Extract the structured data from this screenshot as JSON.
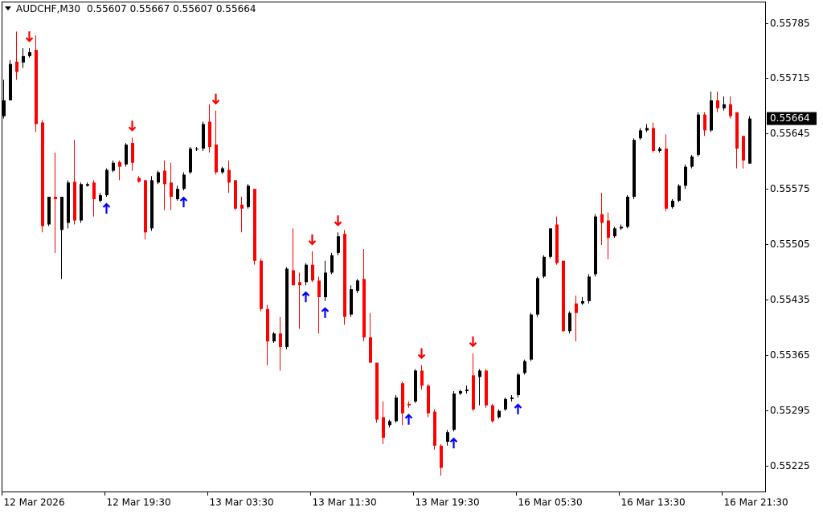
{
  "chart_data": {
    "type": "candlestick",
    "title": "AUDCHF,M30",
    "header_ohlc": [
      0.55607,
      0.55667,
      0.55607,
      0.55664
    ],
    "last_price": 0.55664,
    "categories": [
      "12 Mar 2026",
      null,
      null,
      null,
      null,
      null,
      null,
      null,
      null,
      null,
      null,
      null,
      null,
      null,
      null,
      null,
      "12 Mar 19:30",
      null,
      null,
      null,
      null,
      null,
      null,
      null,
      null,
      null,
      null,
      null,
      null,
      null,
      null,
      null,
      "13 Mar 03:30",
      null,
      null,
      null,
      null,
      null,
      null,
      null,
      null,
      null,
      null,
      null,
      null,
      null,
      null,
      null,
      "13 Mar 11:30",
      null,
      null,
      null,
      null,
      null,
      null,
      null,
      null,
      null,
      null,
      null,
      null,
      null,
      null,
      null,
      "13 Mar 19:30",
      null,
      null,
      null,
      null,
      null,
      null,
      null,
      null,
      null,
      null,
      null,
      null,
      null,
      null,
      null,
      "16 Mar 05:30",
      null,
      null,
      null,
      null,
      null,
      null,
      null,
      null,
      null,
      null,
      null,
      null,
      null,
      null,
      null,
      "16 Mar 13:30",
      null,
      null,
      null,
      null,
      null,
      null,
      null,
      null,
      null,
      null,
      null,
      null,
      null,
      null,
      null,
      "16 Mar 21:30",
      null,
      null,
      null,
      null
    ],
    "open": [
      0.55667,
      0.55687,
      0.55736,
      0.55735,
      0.55743,
      0.55751,
      0.55659,
      0.5553,
      0.55565,
      0.55523,
      0.55532,
      0.55584,
      0.55535,
      0.55579,
      0.55583,
      0.5556,
      0.55567,
      0.55598,
      0.55609,
      0.55606,
      0.55633,
      0.55589,
      0.55586,
      0.55525,
      0.55583,
      0.55598,
      0.55583,
      0.55562,
      0.55575,
      0.55596,
      0.55625,
      0.55626,
      0.5566,
      0.55631,
      0.55596,
      0.55599,
      0.55586,
      0.55555,
      0.55552,
      0.55575,
      0.55484,
      0.55423,
      0.55382,
      0.55392,
      0.55375,
      0.55472,
      0.55457,
      0.55457,
      0.55479,
      0.55459,
      0.55438,
      0.55469,
      0.55494,
      0.55518,
      0.55416,
      0.55446,
      0.55461,
      0.55387,
      0.55355,
      0.55286,
      0.55276,
      0.55281,
      0.55329,
      0.55303,
      0.55306,
      0.55345,
      0.55326,
      0.55293,
      0.5525,
      0.55255,
      0.5527,
      0.55316,
      0.55319,
      0.55339,
      0.55337,
      0.55345,
      0.55301,
      0.55286,
      0.55296,
      0.55309,
      0.55314,
      0.55342,
      0.55359,
      0.55416,
      0.55464,
      0.55489,
      0.5553,
      0.55484,
      0.55395,
      0.5543,
      0.5543,
      0.55433,
      0.55467,
      0.55543,
      0.55535,
      0.55515,
      0.55525,
      0.55527,
      0.55565,
      0.55639,
      0.55649,
      0.55652,
      0.55623,
      0.55626,
      0.55552,
      0.5556,
      0.55579,
      0.55603,
      0.55618,
      0.55669,
      0.55649,
      0.55687,
      0.55677,
      0.55682,
      0.55672,
      0.55642,
      0.55607
    ],
    "high": [
      0.55713,
      0.55738,
      0.55774,
      0.55753,
      0.55753,
      0.55769,
      0.55662,
      0.55565,
      0.55621,
      0.55565,
      0.55586,
      0.55637,
      0.55583,
      0.55583,
      0.55586,
      0.5557,
      0.55601,
      0.55611,
      0.55611,
      0.55633,
      0.5564,
      0.55591,
      0.55586,
      0.55591,
      0.55598,
      0.55611,
      0.55608,
      0.55579,
      0.55596,
      0.55628,
      0.55628,
      0.5566,
      0.55682,
      0.55674,
      0.55603,
      0.55611,
      0.55586,
      0.55565,
      0.55581,
      0.55575,
      0.55487,
      0.55428,
      0.55394,
      0.55413,
      0.55476,
      0.55525,
      0.55469,
      0.55481,
      0.55496,
      0.55464,
      0.55484,
      0.55494,
      0.5552,
      0.55523,
      0.55453,
      0.55461,
      0.55499,
      0.55418,
      0.55355,
      0.55306,
      0.55283,
      0.55314,
      0.55331,
      0.55306,
      0.55347,
      0.55352,
      0.55328,
      0.55296,
      0.55252,
      0.5527,
      0.55319,
      0.55321,
      0.55326,
      0.55367,
      0.55347,
      0.55347,
      0.55303,
      0.55296,
      0.55311,
      0.55314,
      0.55342,
      0.55359,
      0.55418,
      0.55464,
      0.55491,
      0.55525,
      0.5554,
      0.55484,
      0.5542,
      0.5544,
      0.55438,
      0.55467,
      0.55543,
      0.5557,
      0.55545,
      0.55527,
      0.5553,
      0.55567,
      0.55639,
      0.55652,
      0.55657,
      0.55659,
      0.55628,
      0.55644,
      0.55562,
      0.55581,
      0.55606,
      0.55618,
      0.55672,
      0.55672,
      0.55698,
      0.55698,
      0.55692,
      0.55692,
      0.55672,
      0.55642,
      0.55667
    ],
    "low": [
      0.55664,
      0.55687,
      0.55713,
      0.55728,
      0.55741,
      0.55647,
      0.5552,
      0.55528,
      0.55494,
      0.55461,
      0.55525,
      0.5553,
      0.55532,
      0.55578,
      0.5554,
      0.55558,
      0.55565,
      0.55596,
      0.55586,
      0.55603,
      0.55598,
      0.55583,
      0.55511,
      0.55522,
      0.55581,
      0.55548,
      0.55548,
      0.5556,
      0.55573,
      0.55594,
      0.55623,
      0.55623,
      0.55621,
      0.55593,
      0.55594,
      0.5557,
      0.55548,
      0.5552,
      0.5555,
      0.55479,
      0.5542,
      0.55352,
      0.5538,
      0.55345,
      0.55372,
      0.55453,
      0.55398,
      0.55453,
      0.55457,
      0.55392,
      0.55433,
      0.55467,
      0.55491,
      0.55403,
      0.55413,
      0.55443,
      0.55382,
      0.55355,
      0.55279,
      0.55252,
      0.55273,
      0.55279,
      0.55276,
      0.55298,
      0.55304,
      0.55321,
      0.55286,
      0.55245,
      0.55212,
      0.5525,
      0.55268,
      0.55314,
      0.55316,
      0.55294,
      0.55301,
      0.55298,
      0.55279,
      0.55284,
      0.55294,
      0.55306,
      0.55311,
      0.5534,
      0.55357,
      0.55413,
      0.55462,
      0.55487,
      0.55479,
      0.55394,
      0.55392,
      0.55382,
      0.55428,
      0.5543,
      0.55464,
      0.55504,
      0.55486,
      0.55513,
      0.55523,
      0.55525,
      0.55562,
      0.55637,
      0.55647,
      0.55621,
      0.55621,
      0.55547,
      0.5555,
      0.55558,
      0.55575,
      0.55601,
      0.55616,
      0.55642,
      0.55647,
      0.55672,
      0.55674,
      0.55664,
      0.55601,
      0.55601,
      0.55607
    ],
    "close": [
      0.55687,
      0.55733,
      0.55723,
      0.55743,
      0.55748,
      0.55657,
      0.55528,
      0.55565,
      0.55562,
      0.55565,
      0.55583,
      0.55535,
      0.55581,
      0.55581,
      0.55562,
      0.55567,
      0.55599,
      0.55608,
      0.55603,
      0.55631,
      0.55608,
      0.55584,
      0.5552,
      0.55586,
      0.55596,
      0.55581,
      0.55565,
      0.55575,
      0.55593,
      0.55626,
      0.55626,
      0.55657,
      0.55628,
      0.55596,
      0.55601,
      0.55583,
      0.5555,
      0.5555,
      0.55579,
      0.55484,
      0.55423,
      0.55382,
      0.55392,
      0.55375,
      0.55474,
      0.55453,
      0.55453,
      0.55479,
      0.55459,
      0.55438,
      0.55469,
      0.55491,
      0.55515,
      0.55413,
      0.55448,
      0.55459,
      0.55387,
      0.55355,
      0.55283,
      0.5526,
      0.55281,
      0.55311,
      0.55291,
      0.55301,
      0.55345,
      0.55326,
      0.55291,
      0.5525,
      0.55222,
      0.55267,
      0.55316,
      0.55319,
      0.55321,
      0.55296,
      0.55345,
      0.55301,
      0.55281,
      0.55294,
      0.55309,
      0.55311,
      0.5534,
      0.55357,
      0.55416,
      0.55462,
      0.55489,
      0.55525,
      0.55481,
      0.55395,
      0.55418,
      0.55418,
      0.55433,
      0.55464,
      0.5554,
      0.55532,
      0.55513,
      0.55525,
      0.55527,
      0.55565,
      0.55637,
      0.55649,
      0.55652,
      0.55623,
      0.55626,
      0.5555,
      0.5556,
      0.55579,
      0.55603,
      0.55616,
      0.55669,
      0.55649,
      0.55687,
      0.55677,
      0.55682,
      0.55667,
      0.55626,
      0.55611,
      0.55664
    ],
    "up_color": "#000000",
    "down_color": "#ff0000",
    "sell_arrows": [
      4,
      20,
      33,
      48,
      52,
      65,
      73
    ],
    "buy_arrows": [
      16,
      28,
      47,
      50,
      63,
      70,
      80
    ],
    "sell_color": "#ff0000",
    "buy_color": "#0000ff",
    "ylim": [
      0.55192,
      0.55812
    ],
    "yticks": [
      0.55225,
      0.55295,
      0.55365,
      0.55435,
      0.55505,
      0.55575,
      0.55645,
      0.55715,
      0.55785
    ]
  }
}
